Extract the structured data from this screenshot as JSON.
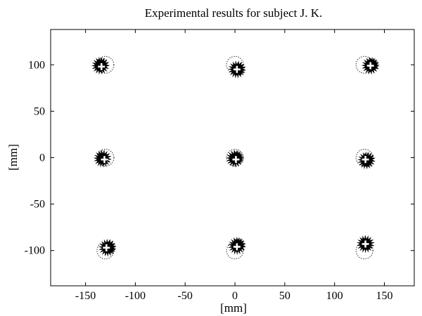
{
  "chart_data": {
    "type": "scatter",
    "title": "Experimental results for subject J. K.",
    "xlabel": "[mm]",
    "ylabel": "[mm]",
    "xlim": [
      -185,
      180
    ],
    "ylim": [
      -138,
      138
    ],
    "xticks": [
      -150,
      -100,
      -50,
      0,
      50,
      100,
      150
    ],
    "yticks": [
      -100,
      -50,
      0,
      50,
      100
    ],
    "grid": false,
    "legend": "none",
    "series": [
      {
        "marker": "dotted-circle",
        "description_role": "targets",
        "points": [
          {
            "x": -130,
            "y": 100
          },
          {
            "x": 0,
            "y": 100
          },
          {
            "x": 130,
            "y": 100
          },
          {
            "x": -130,
            "y": 0
          },
          {
            "x": 0,
            "y": 0
          },
          {
            "x": 130,
            "y": 0
          },
          {
            "x": -130,
            "y": -100
          },
          {
            "x": 0,
            "y": -100
          },
          {
            "x": 130,
            "y": -100
          }
        ]
      },
      {
        "marker": "star-cluster",
        "description_role": "responses",
        "points": [
          {
            "x": -135,
            "y": 99
          },
          {
            "x": 2,
            "y": 95
          },
          {
            "x": 136,
            "y": 99
          },
          {
            "x": -133,
            "y": -1
          },
          {
            "x": 0,
            "y": -1
          },
          {
            "x": 132,
            "y": -3
          },
          {
            "x": -128,
            "y": -97
          },
          {
            "x": 2,
            "y": -95
          },
          {
            "x": 131,
            "y": -93
          }
        ]
      },
      {
        "marker": "white-plus",
        "description_role": "means",
        "points": [
          {
            "x": -134,
            "y": 98
          },
          {
            "x": 2,
            "y": 95
          },
          {
            "x": 136,
            "y": 99
          },
          {
            "x": -131,
            "y": -2
          },
          {
            "x": 1,
            "y": -2
          },
          {
            "x": 131,
            "y": -2
          },
          {
            "x": -129,
            "y": -97
          },
          {
            "x": 2,
            "y": -96
          },
          {
            "x": 131,
            "y": -93
          }
        ]
      }
    ]
  }
}
